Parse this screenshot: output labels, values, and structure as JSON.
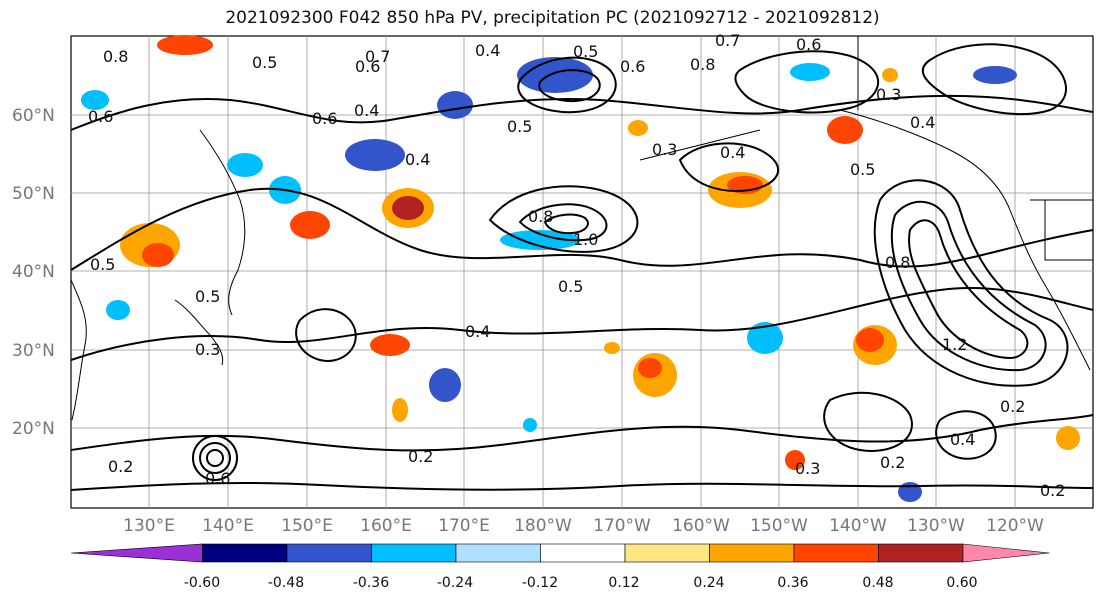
{
  "title": "2021092300 F042 850 hPa PV, precipitation PC (2021092712 - 2021092812)",
  "lat_labels": [
    "60°N",
    "50°N",
    "40°N",
    "30°N",
    "20°N"
  ],
  "lon_labels": [
    "130°E",
    "140°E",
    "150°E",
    "160°E",
    "170°E",
    "180°W",
    "170°W",
    "160°W",
    "150°W",
    "140°W",
    "130°W",
    "120°W"
  ],
  "colorbar": {
    "colors": [
      "#9b30d6",
      "#00007f",
      "#3355cc",
      "#00bfff",
      "#b0e0ff",
      "#ffffff",
      "#ffe680",
      "#ffa500",
      "#ff4500",
      "#b22222",
      "#ff88aa"
    ],
    "tick_labels": [
      "-0.60",
      "-0.48",
      "-0.36",
      "-0.24",
      "-0.12",
      "0.12",
      "0.24",
      "0.36",
      "0.48",
      "0.60"
    ]
  },
  "contour_labels": [
    "0.8",
    "0.5",
    "0.7",
    "0.6",
    "0.4",
    "0.5",
    "0.6",
    "0.8",
    "0.7",
    "0.6",
    "0.6",
    "0.6",
    "0.4",
    "0.5",
    "0.3",
    "0.4",
    "0.5",
    "0.8",
    "1.0",
    "0.5",
    "0.4",
    "0.3",
    "0.4",
    "0.5",
    "0.8",
    "1.2",
    "0.2",
    "0.3",
    "0.2",
    "0.2",
    "0.6",
    "0.2",
    "0.4",
    "0.2",
    "0.3",
    "0.5",
    "0.4"
  ]
}
